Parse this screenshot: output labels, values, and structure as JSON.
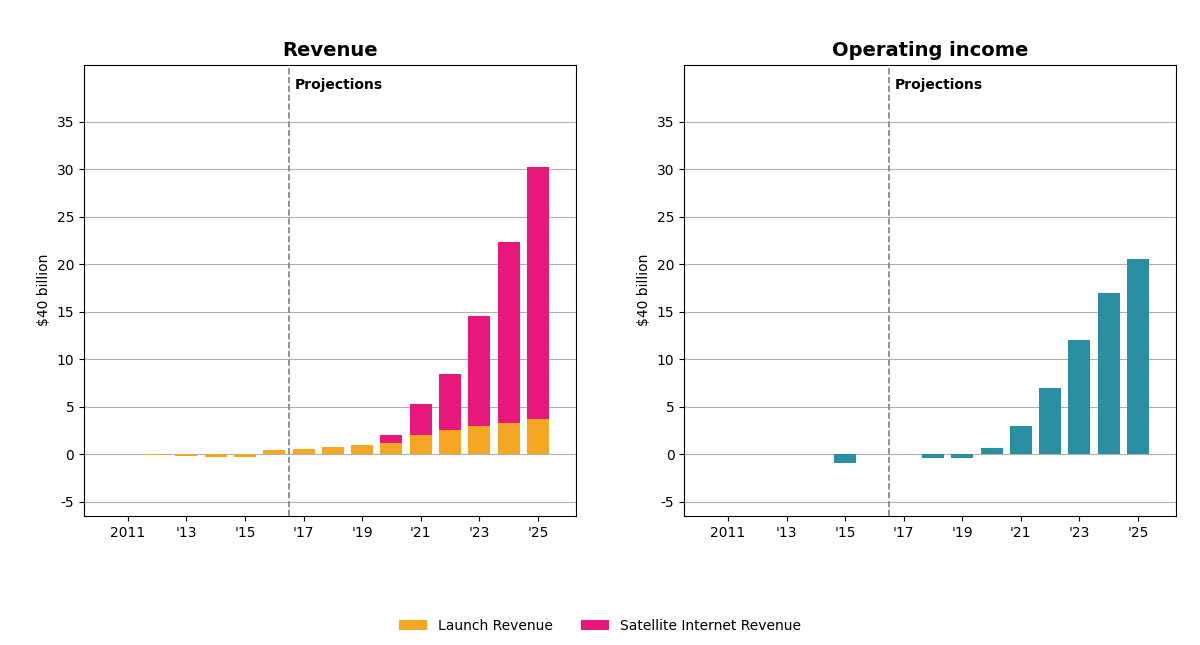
{
  "chart_data": [
    {
      "type": "bar",
      "title": "Revenue",
      "stacked": true,
      "x": [
        2011,
        2012,
        2013,
        2014,
        2015,
        2016,
        2017,
        2018,
        2019,
        2020,
        2021,
        2022,
        2023,
        2024,
        2025
      ],
      "series": [
        {
          "name": "Launch Revenue",
          "color": "#F5A623",
          "values": [
            0.0,
            -0.05,
            -0.15,
            -0.25,
            -0.3,
            0.4,
            0.6,
            0.8,
            1.0,
            1.2,
            2.0,
            2.5,
            3.0,
            3.3,
            3.7
          ]
        },
        {
          "name": "Satellite Internet Revenue",
          "color": "#E8177C",
          "values": [
            0,
            0,
            0,
            0,
            0,
            0,
            0,
            0,
            0,
            0.8,
            3.3,
            5.9,
            11.5,
            19.0,
            26.5
          ]
        }
      ],
      "ylabel": "$40 billion",
      "xlim": [
        2009.5,
        2026.3
      ],
      "xticks": [
        2011,
        {
          "value": 2013,
          "label": "'13"
        },
        {
          "value": 2015,
          "label": "'15"
        },
        {
          "value": 2017,
          "label": "'17"
        },
        {
          "value": 2019,
          "label": "'19"
        },
        {
          "value": 2021,
          "label": "'21"
        },
        {
          "value": 2023,
          "label": "'23"
        },
        {
          "value": 2025,
          "label": "'25"
        }
      ],
      "ylim": [
        -6.5,
        41
      ],
      "yticks": [
        -5,
        0,
        5,
        10,
        15,
        20,
        25,
        30,
        35
      ],
      "grid": "y",
      "legend": "lower center",
      "annotations": [
        {
          "text": "Projections",
          "x": 2016.5
        }
      ]
    },
    {
      "type": "bar",
      "title": "Operating income",
      "x": [
        2011,
        2012,
        2013,
        2014,
        2015,
        2016,
        2017,
        2018,
        2019,
        2020,
        2021,
        2022,
        2023,
        2024,
        2025
      ],
      "values": [
        0.0,
        0.0,
        0.0,
        0.0,
        -0.9,
        0.0,
        0.0,
        -0.4,
        -0.4,
        0.7,
        3.0,
        7.0,
        12.0,
        17.0,
        20.5
      ],
      "color": "#2A8FA3",
      "ylabel": "$40 billion",
      "xlim": [
        2009.5,
        2026.3
      ],
      "xticks": [
        2011,
        {
          "value": 2013,
          "label": "'13"
        },
        {
          "value": 2015,
          "label": "'15"
        },
        {
          "value": 2017,
          "label": "'17"
        },
        {
          "value": 2019,
          "label": "'19"
        },
        {
          "value": 2021,
          "label": "'21"
        },
        {
          "value": 2023,
          "label": "'23"
        },
        {
          "value": 2025,
          "label": "'25"
        }
      ],
      "ylim": [
        -6.5,
        41
      ],
      "yticks": [
        -5,
        0,
        5,
        10,
        15,
        20,
        25,
        30,
        35
      ],
      "grid": "y",
      "annotations": [
        {
          "text": "Projections",
          "x": 2016.5
        }
      ]
    }
  ]
}
